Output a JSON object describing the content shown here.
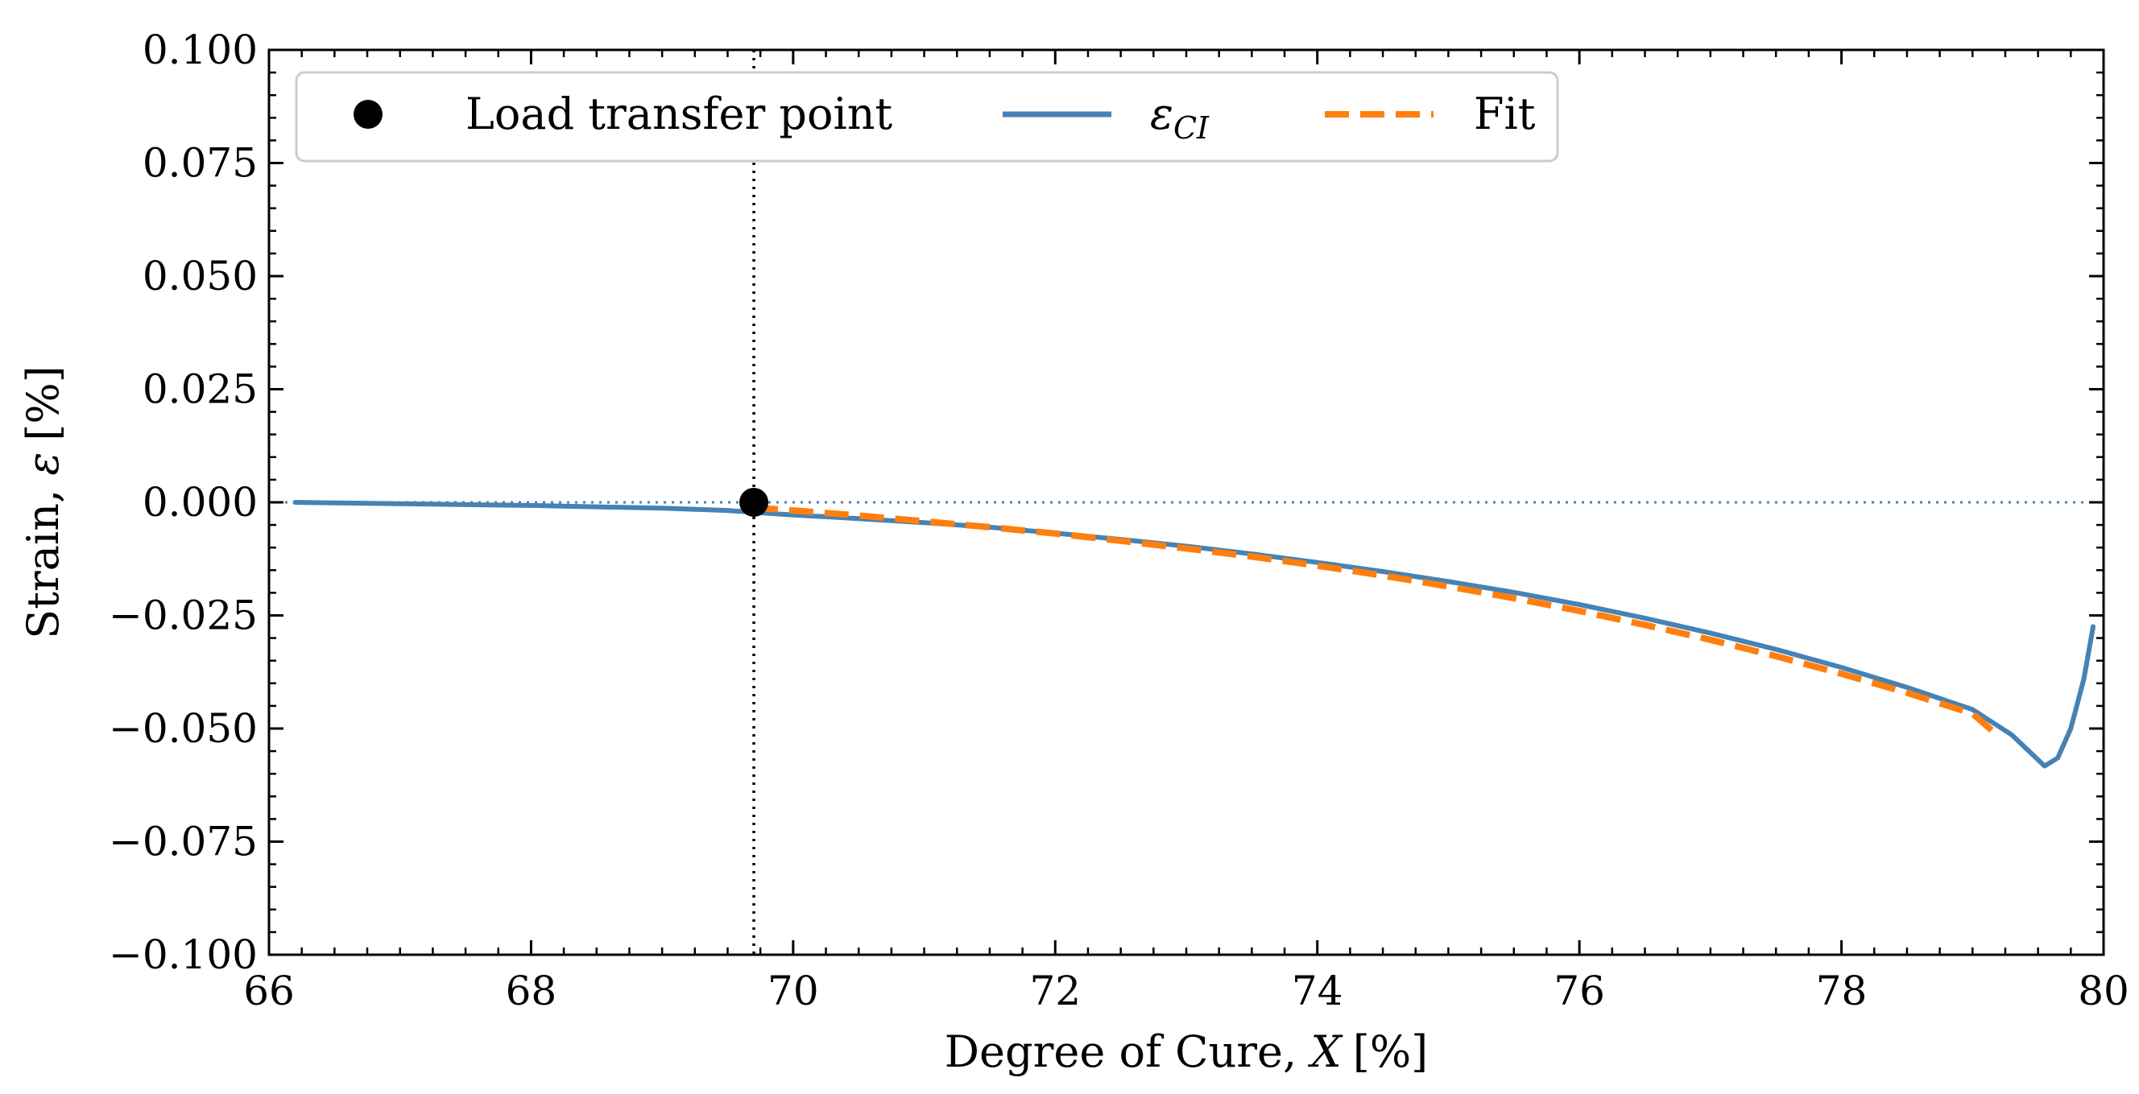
{
  "chart_data": {
    "type": "line",
    "xlabel": "Degree of Cure, X [%]",
    "xlabel_text": "Degree of Cure, ",
    "xlabel_var": "X",
    "xlabel_unit": "[%]",
    "ylabel": "Strain, ε [%]",
    "ylabel_text": "Strain, ",
    "ylabel_var": "ε",
    "ylabel_unit": "[%]",
    "xlim": [
      66,
      80
    ],
    "ylim": [
      -0.1,
      0.1
    ],
    "xticks": [
      66,
      68,
      70,
      72,
      74,
      76,
      78,
      80
    ],
    "xtick_labels": [
      "66",
      "68",
      "70",
      "72",
      "74",
      "76",
      "78",
      "80"
    ],
    "yticks": [
      0.1,
      0.075,
      0.05,
      0.025,
      0.0,
      -0.025,
      -0.05,
      -0.075,
      -0.1
    ],
    "ytick_labels": [
      "0.100",
      "0.075",
      "0.050",
      "0.025",
      "0.000",
      "−0.025",
      "−0.050",
      "−0.075",
      "−0.100"
    ],
    "reference_lines": {
      "horizontal_y": 0.0,
      "vertical_x": 69.7
    },
    "legend": {
      "location": "top-left",
      "entries": [
        {
          "label": "Load transfer point",
          "style": "marker"
        },
        {
          "label": "ε",
          "subscript": "CI",
          "style": "solid"
        },
        {
          "label": "Fit",
          "style": "dashed"
        }
      ]
    },
    "series": [
      {
        "name": "Load transfer point",
        "kind": "point",
        "color": "#000000",
        "x": [
          69.7
        ],
        "y": [
          0.0
        ]
      },
      {
        "name": "ε_CI",
        "kind": "line",
        "color": "#4682b4",
        "x": [
          66.2,
          67.0,
          68.0,
          68.5,
          69.0,
          69.5,
          69.7,
          70.0,
          70.5,
          71.0,
          71.5,
          72.0,
          72.5,
          73.0,
          73.5,
          74.0,
          74.5,
          75.0,
          75.5,
          76.0,
          76.5,
          77.0,
          77.5,
          78.0,
          78.5,
          79.0,
          79.3,
          79.55,
          79.65,
          79.75,
          79.85,
          79.92
        ],
        "y": [
          0.0,
          -0.0003,
          -0.0007,
          -0.001,
          -0.0013,
          -0.0018,
          -0.0022,
          -0.0028,
          -0.0036,
          -0.0045,
          -0.0055,
          -0.0068,
          -0.0082,
          -0.0097,
          -0.0114,
          -0.0133,
          -0.0153,
          -0.0175,
          -0.0199,
          -0.0226,
          -0.0256,
          -0.0289,
          -0.0325,
          -0.0365,
          -0.0409,
          -0.0458,
          -0.0514,
          -0.0583,
          -0.0565,
          -0.05,
          -0.039,
          -0.0275
        ]
      },
      {
        "name": "Fit",
        "kind": "dashed",
        "color": "#ff7f0e",
        "x": [
          69.7,
          70.0,
          70.5,
          71.0,
          71.5,
          72.0,
          72.5,
          73.0,
          73.5,
          74.0,
          74.5,
          75.0,
          75.5,
          76.0,
          76.5,
          77.0,
          77.5,
          78.0,
          78.5,
          79.0,
          79.2
        ],
        "y": [
          -0.0012,
          -0.0018,
          -0.0029,
          -0.0042,
          -0.0055,
          -0.0069,
          -0.0085,
          -0.0102,
          -0.012,
          -0.014,
          -0.0162,
          -0.0186,
          -0.0212,
          -0.024,
          -0.0271,
          -0.0304,
          -0.034,
          -0.0379,
          -0.0421,
          -0.0467,
          -0.0517
        ]
      }
    ]
  }
}
